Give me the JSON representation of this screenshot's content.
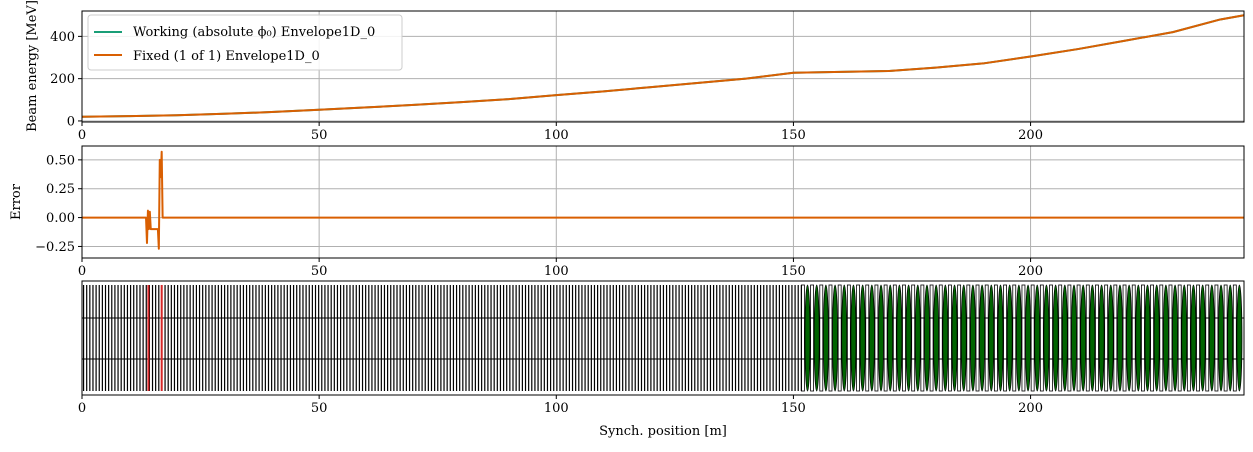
{
  "colors": {
    "working": "#1a9e77",
    "fixed": "#d95f02",
    "grid": "#b0b0b0",
    "element_fill": "#006400",
    "element_stroke": "#000000",
    "marker_red": "#d62728"
  },
  "chart_data": [
    {
      "type": "line",
      "ylabel": "Beam energy [MeV]",
      "xlim": [
        0,
        245
      ],
      "ylim": [
        -5,
        520
      ],
      "xticks": [
        0,
        50,
        100,
        150,
        200
      ],
      "yticks": [
        0,
        200,
        400
      ],
      "grid": true,
      "legend_position": "top-left",
      "series": [
        {
          "name": "Working (absolute ϕ₀) Envelope1D_0",
          "x": [
            0,
            10,
            20,
            30,
            40,
            50,
            60,
            70,
            80,
            90,
            100,
            110,
            120,
            130,
            140,
            150,
            160,
            170,
            180,
            190,
            200,
            210,
            220,
            230,
            240,
            245
          ],
          "y": [
            20,
            23,
            27,
            34,
            42,
            53,
            64,
            76,
            89,
            103,
            122,
            140,
            160,
            180,
            200,
            228,
            232,
            236,
            252,
            272,
            305,
            340,
            380,
            420,
            480,
            500
          ]
        },
        {
          "name": "Fixed (1 of 1) Envelope1D_0",
          "x": [
            0,
            10,
            20,
            30,
            40,
            50,
            60,
            70,
            80,
            90,
            100,
            110,
            120,
            130,
            140,
            150,
            160,
            170,
            180,
            190,
            200,
            210,
            220,
            230,
            240,
            245
          ],
          "y": [
            20,
            23,
            27,
            34,
            42,
            53,
            64,
            76,
            89,
            103,
            122,
            140,
            160,
            180,
            200,
            228,
            232,
            236,
            252,
            272,
            305,
            340,
            380,
            420,
            480,
            500
          ]
        }
      ]
    },
    {
      "type": "line",
      "ylabel": "Error",
      "xlim": [
        0,
        245
      ],
      "ylim": [
        -0.35,
        0.62
      ],
      "xticks": [
        0,
        50,
        100,
        150,
        200
      ],
      "yticks": [
        -0.25,
        0.0,
        0.25,
        0.5
      ],
      "ytick_labels": [
        "−0.25",
        "0.00",
        "0.25",
        "0.50"
      ],
      "grid": true,
      "series": [
        {
          "name": "Fixed (1 of 1) Envelope1D_0",
          "x": [
            0,
            13.5,
            13.7,
            13.9,
            14.1,
            14.3,
            14.5,
            14.8,
            16.0,
            16.2,
            16.4,
            16.6,
            16.8,
            17.0,
            17.2,
            17.5,
            245
          ],
          "y": [
            0,
            0,
            -0.22,
            0.06,
            -0.1,
            0.05,
            -0.1,
            -0.1,
            -0.1,
            -0.27,
            0.5,
            0.35,
            0.57,
            0.0,
            0.0,
            0.0,
            0.0
          ]
        }
      ]
    },
    {
      "type": "structure",
      "xlabel": "Synch. position [m]",
      "xlim": [
        0,
        245
      ],
      "xticks": [
        0,
        50,
        100,
        150,
        200
      ],
      "grid": false,
      "lattice": {
        "black_start": 0,
        "black_end": 152,
        "black_count": 230,
        "green_start": 152,
        "green_end": 245,
        "green_count": 48,
        "red_elements": [
          14.0,
          16.8
        ]
      }
    }
  ]
}
